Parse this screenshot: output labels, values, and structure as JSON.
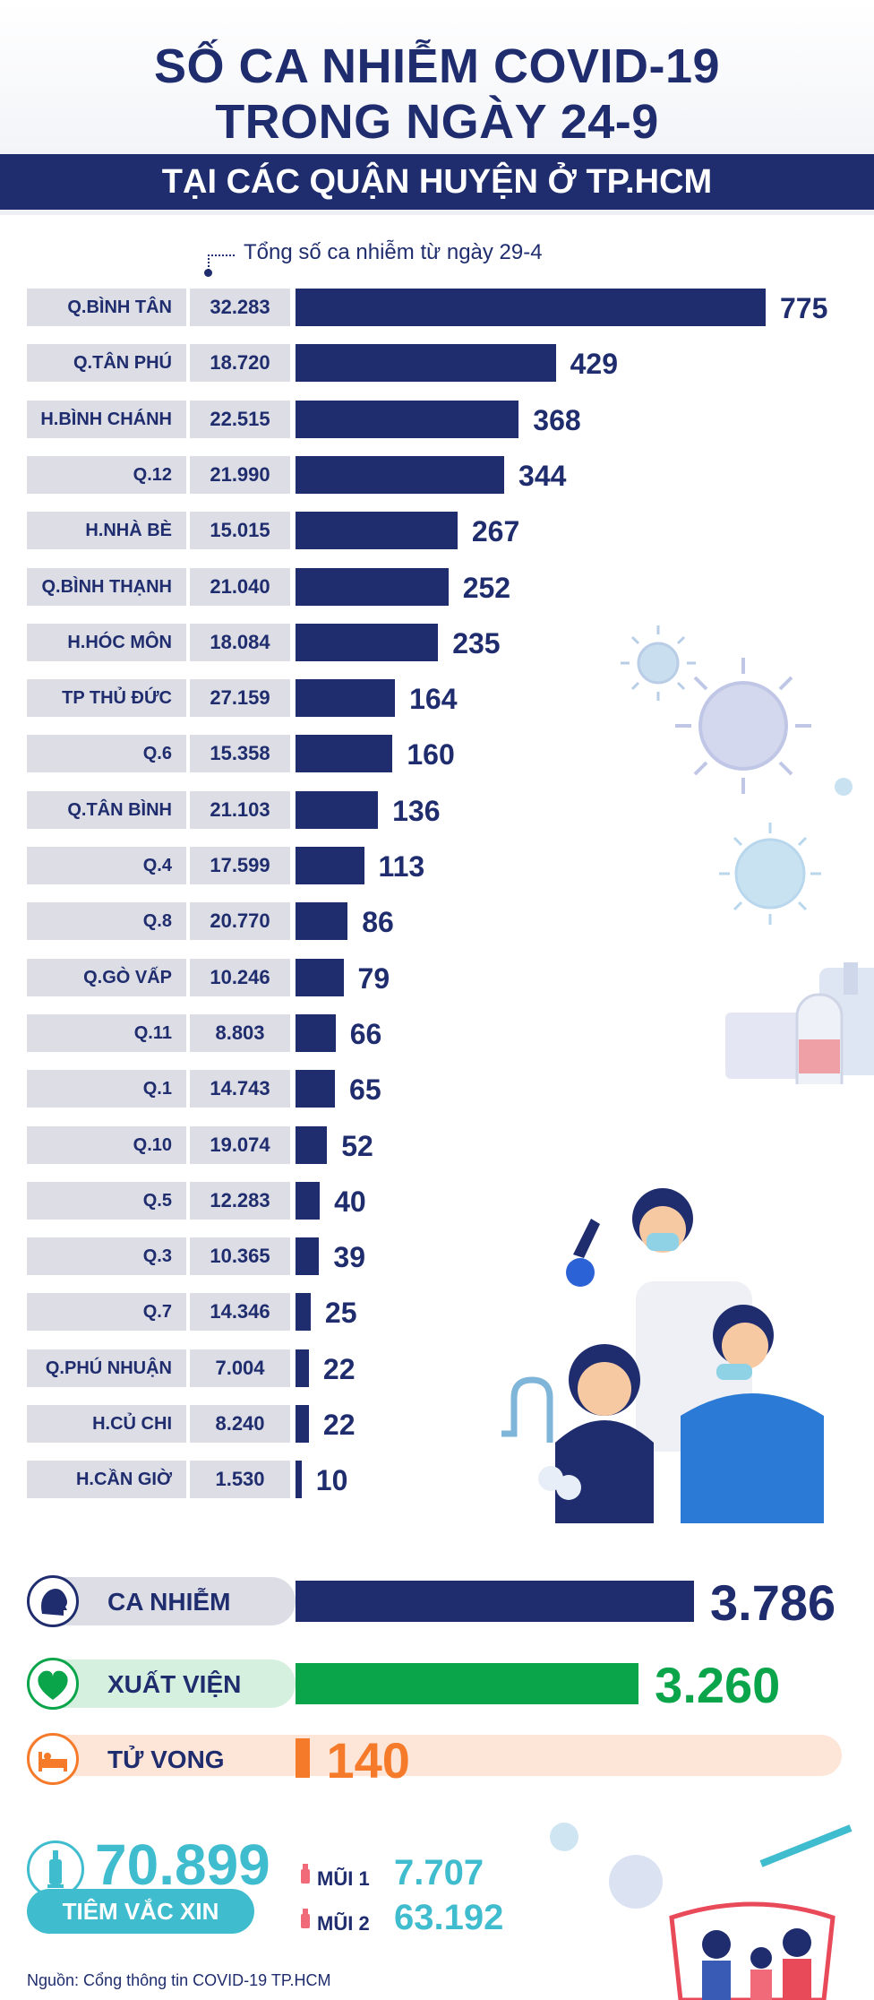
{
  "title": {
    "line1": "SỐ CA NHIỄM COVID-19",
    "line2": "TRONG NGÀY 24-9",
    "subtitle": "TẠI CÁC QUẬN HUYỆN Ở TP.HCM"
  },
  "note": "Tổng số ca nhiễm từ ngày 29-4",
  "colors": {
    "navy": "#1f2d6e",
    "green": "#0aa54a",
    "orange": "#f57a2a",
    "teal": "#40bccf",
    "rowbg": "#dcdde5"
  },
  "chart_data": {
    "type": "bar",
    "orientation": "horizontal",
    "title": "Số ca nhiễm COVID-19 trong ngày 24-9 tại các quận huyện ở TP.HCM",
    "categories": [
      "Q.BÌNH TÂN",
      "Q.TÂN PHÚ",
      "H.BÌNH CHÁNH",
      "Q.12",
      "H.NHÀ BÈ",
      "Q.BÌNH THẠNH",
      "H.HÓC MÔN",
      "TP THỦ ĐỨC",
      "Q.6",
      "Q.TÂN BÌNH",
      "Q.4",
      "Q.8",
      "Q.GÒ VẤP",
      "Q.11",
      "Q.1",
      "Q.10",
      "Q.5",
      "Q.3",
      "Q.7",
      "Q.PHÚ NHUẬN",
      "H.CỦ CHI",
      "H.CẦN GIỜ"
    ],
    "totals_label": "Tổng số ca nhiễm từ ngày 29-4",
    "totals": [
      "32.283",
      "18.720",
      "22.515",
      "21.990",
      "15.015",
      "21.040",
      "18.084",
      "27.159",
      "15.358",
      "21.103",
      "17.599",
      "20.770",
      "10.246",
      "8.803",
      "14.743",
      "19.074",
      "12.283",
      "10.365",
      "14.346",
      "7.004",
      "8.240",
      "1.530"
    ],
    "values": [
      775,
      429,
      368,
      344,
      267,
      252,
      235,
      164,
      160,
      136,
      113,
      86,
      79,
      66,
      65,
      52,
      40,
      39,
      25,
      22,
      22,
      10
    ],
    "xlim": [
      0,
      775
    ]
  },
  "summary": [
    {
      "key": "ca-nhiem",
      "label": "CA NHIỄM",
      "value": 3786,
      "display": "3.786",
      "icon": "head-icon",
      "color": "#1f2d6e",
      "pill": "#dcdde5"
    },
    {
      "key": "xuat-vien",
      "label": "XUẤT VIỆN",
      "value": 3260,
      "display": "3.260",
      "icon": "heart-icon",
      "color": "#0aa54a",
      "pill": "#d6f0df"
    },
    {
      "key": "tu-vong",
      "label": "TỬ VONG",
      "value": 140,
      "display": "140",
      "icon": "bed-icon",
      "color": "#f57a2a",
      "pill": "#fde6d8"
    }
  ],
  "vaccine": {
    "total": "70.899",
    "label": "TIÊM VẮC XIN",
    "dose1_label": "MŨI 1",
    "dose1_value": "7.707",
    "dose2_label": "MŨI 2",
    "dose2_value": "63.192"
  },
  "source": "Nguồn: Cổng thông tin COVID-19 TP.HCM"
}
